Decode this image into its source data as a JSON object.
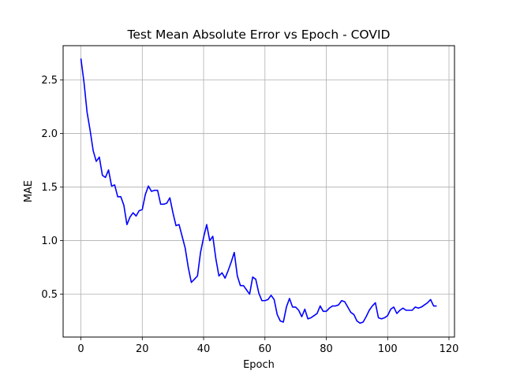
{
  "chart_data": {
    "type": "line",
    "title": "Test Mean Absolute Error vs Epoch - COVID",
    "xlabel": "Epoch",
    "ylabel": "MAE",
    "xlim": [
      -5.8,
      121.8
    ],
    "ylim": [
      0.1,
      2.82
    ],
    "x_ticks": [
      0,
      20,
      40,
      60,
      80,
      100,
      120
    ],
    "y_ticks": [
      0.5,
      1.0,
      1.5,
      2.0,
      2.5
    ],
    "x_tick_labels": [
      "0",
      "20",
      "40",
      "60",
      "80",
      "100",
      "120"
    ],
    "y_tick_labels": [
      "0.5",
      "1.0",
      "1.5",
      "2.0",
      "2.5"
    ],
    "grid": true,
    "series": [
      {
        "color": "#0000ff",
        "x": [
          0,
          1,
          2,
          3,
          4,
          5,
          6,
          7,
          8,
          9,
          10,
          11,
          12,
          13,
          14,
          15,
          16,
          17,
          18,
          19,
          20,
          21,
          22,
          23,
          24,
          25,
          26,
          27,
          28,
          29,
          30,
          31,
          32,
          33,
          34,
          35,
          36,
          37,
          38,
          39,
          40,
          41,
          42,
          43,
          44,
          45,
          46,
          47,
          48,
          49,
          50,
          51,
          52,
          53,
          54,
          55,
          56,
          57,
          58,
          59,
          60,
          61,
          62,
          63,
          64,
          65,
          66,
          67,
          68,
          69,
          70,
          71,
          72,
          73,
          74,
          75,
          76,
          77,
          78,
          79,
          80,
          81,
          82,
          83,
          84,
          85,
          86,
          87,
          88,
          89,
          90,
          91,
          92,
          93,
          94,
          95,
          96,
          97,
          98,
          99,
          100,
          101,
          102,
          103,
          104,
          105,
          106,
          107,
          108,
          109,
          110,
          111,
          112,
          113,
          114,
          115,
          116
        ],
        "y": [
          2.7,
          2.48,
          2.2,
          2.03,
          1.84,
          1.74,
          1.78,
          1.61,
          1.59,
          1.66,
          1.51,
          1.52,
          1.41,
          1.41,
          1.33,
          1.15,
          1.22,
          1.26,
          1.23,
          1.28,
          1.29,
          1.43,
          1.51,
          1.46,
          1.47,
          1.47,
          1.34,
          1.34,
          1.35,
          1.4,
          1.26,
          1.14,
          1.15,
          1.04,
          0.93,
          0.75,
          0.61,
          0.64,
          0.67,
          0.89,
          1.03,
          1.15,
          1.0,
          1.04,
          0.83,
          0.67,
          0.7,
          0.65,
          0.72,
          0.8,
          0.89,
          0.67,
          0.58,
          0.58,
          0.54,
          0.5,
          0.66,
          0.64,
          0.51,
          0.44,
          0.44,
          0.45,
          0.49,
          0.45,
          0.31,
          0.25,
          0.24,
          0.38,
          0.46,
          0.38,
          0.38,
          0.35,
          0.29,
          0.36,
          0.27,
          0.28,
          0.3,
          0.32,
          0.39,
          0.34,
          0.34,
          0.37,
          0.39,
          0.39,
          0.4,
          0.44,
          0.43,
          0.38,
          0.33,
          0.31,
          0.25,
          0.23,
          0.24,
          0.29,
          0.35,
          0.39,
          0.42,
          0.28,
          0.27,
          0.28,
          0.3,
          0.36,
          0.38,
          0.32,
          0.35,
          0.37,
          0.35,
          0.35,
          0.35,
          0.38,
          0.37,
          0.38,
          0.4,
          0.42,
          0.45,
          0.39,
          0.39
        ]
      }
    ]
  }
}
